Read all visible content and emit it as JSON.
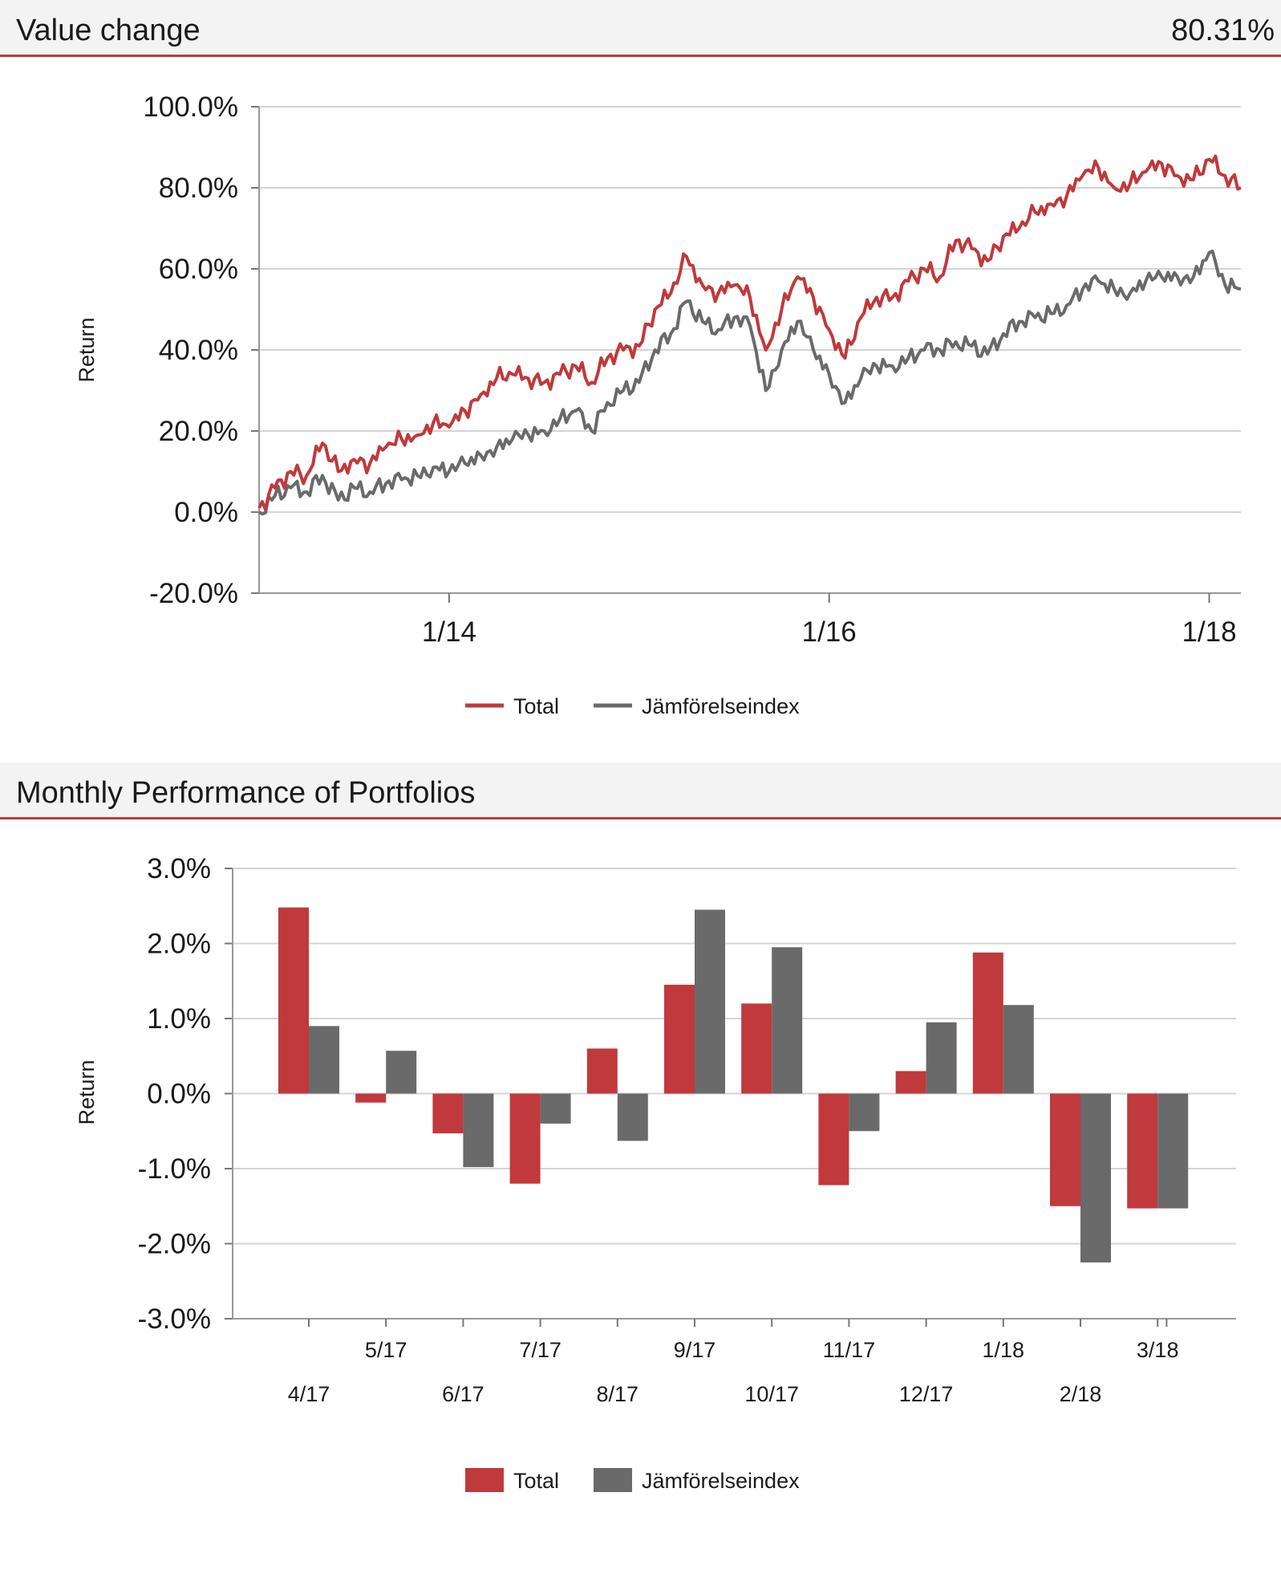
{
  "sections": {
    "value_change": {
      "title": "Value change",
      "value": "80.31%"
    },
    "monthly": {
      "title": "Monthly Performance of Portfolios"
    }
  },
  "colors": {
    "total": "#c0393c",
    "index": "#6a6a6a",
    "accent": "#c0393c"
  },
  "chart_data": [
    {
      "type": "line",
      "ylabel": "Return",
      "ylim": [
        -20,
        100
      ],
      "yticks": [
        -20,
        0,
        20,
        40,
        60,
        80,
        100
      ],
      "ytick_labels": [
        "-20.0%",
        "0.0%",
        "20.0%",
        "40.0%",
        "60.0%",
        "80.0%",
        "100.0%"
      ],
      "xlim": [
        "2013-01",
        "2018-03"
      ],
      "xtick_labels": [
        "1/14",
        "1/16",
        "1/18"
      ],
      "xticks": [
        "2014-01",
        "2016-01",
        "2018-01"
      ],
      "grid": true,
      "legend": "bottom-center",
      "x": [
        "2013-01",
        "2013-02",
        "2013-03",
        "2013-04",
        "2013-05",
        "2013-06",
        "2013-07",
        "2013-08",
        "2013-09",
        "2013-10",
        "2013-11",
        "2013-12",
        "2014-01",
        "2014-02",
        "2014-03",
        "2014-04",
        "2014-05",
        "2014-06",
        "2014-07",
        "2014-08",
        "2014-09",
        "2014-10",
        "2014-11",
        "2014-12",
        "2015-01",
        "2015-02",
        "2015-03",
        "2015-04",
        "2015-05",
        "2015-06",
        "2015-07",
        "2015-08",
        "2015-09",
        "2015-10",
        "2015-11",
        "2015-12",
        "2016-01",
        "2016-02",
        "2016-03",
        "2016-04",
        "2016-05",
        "2016-06",
        "2016-07",
        "2016-08",
        "2016-09",
        "2016-10",
        "2016-11",
        "2016-12",
        "2017-01",
        "2017-02",
        "2017-03",
        "2017-04",
        "2017-05",
        "2017-06",
        "2017-07",
        "2017-08",
        "2017-09",
        "2017-10",
        "2017-11",
        "2017-12",
        "2018-01",
        "2018-02",
        "2018-03"
      ],
      "series": [
        {
          "name": "Total",
          "values": [
            1,
            6,
            10,
            9,
            17,
            10,
            13,
            12,
            16,
            18,
            19,
            22,
            21,
            25,
            29,
            33,
            34,
            33,
            32,
            34,
            36,
            32,
            38,
            40,
            41,
            50,
            54,
            63,
            56,
            54,
            56,
            53,
            40,
            50,
            58,
            53,
            45,
            38,
            48,
            53,
            53,
            57,
            60,
            58,
            67,
            65,
            62,
            68,
            70,
            74,
            76,
            78,
            83,
            85,
            80,
            81,
            84,
            86,
            83,
            82,
            87,
            83,
            80
          ]
        },
        {
          "name": "Jämförelseindex",
          "values": [
            0,
            4,
            6,
            5,
            9,
            3,
            6,
            5,
            7,
            8,
            9,
            11,
            10,
            12,
            14,
            16,
            18,
            19,
            20,
            23,
            25,
            20,
            27,
            30,
            32,
            40,
            44,
            52,
            47,
            45,
            48,
            46,
            30,
            40,
            47,
            40,
            34,
            27,
            33,
            36,
            36,
            38,
            40,
            40,
            42,
            41,
            39,
            44,
            47,
            48,
            49,
            51,
            55,
            57,
            55,
            54,
            57,
            58,
            58,
            58,
            64,
            56,
            55
          ]
        }
      ]
    },
    {
      "type": "bar",
      "ylabel": "Return",
      "ylim": [
        -3,
        3
      ],
      "yticks": [
        -3,
        -2,
        -1,
        0,
        1,
        2,
        3
      ],
      "ytick_labels": [
        "-3.0%",
        "-2.0%",
        "-1.0%",
        "0.0%",
        "1.0%",
        "2.0%",
        "3.0%"
      ],
      "categories": [
        "4/17",
        "5/17",
        "6/17",
        "7/17",
        "8/17",
        "9/17",
        "10/17",
        "11/17",
        "12/17",
        "1/18",
        "2/18",
        "3/18"
      ],
      "grid": true,
      "legend": "bottom-center",
      "series": [
        {
          "name": "Total",
          "values": [
            2.48,
            -0.12,
            -0.53,
            -1.2,
            0.6,
            1.45,
            1.2,
            -1.22,
            0.3,
            1.88,
            -1.5,
            -1.53
          ]
        },
        {
          "name": "Jämförelseindex",
          "values": [
            0.9,
            0.57,
            -0.98,
            -0.4,
            -0.63,
            2.45,
            1.95,
            -0.5,
            0.95,
            1.18,
            -2.25,
            -1.53
          ]
        }
      ]
    }
  ]
}
